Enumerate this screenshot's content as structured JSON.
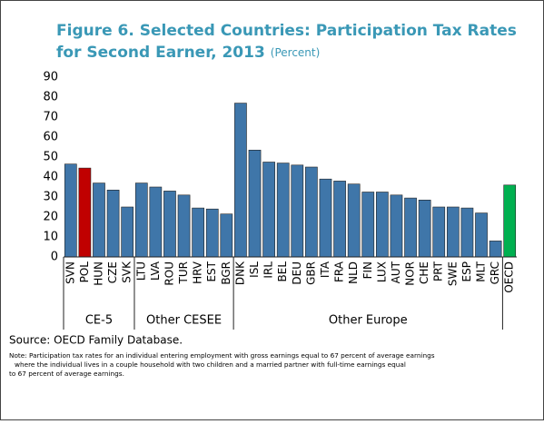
{
  "chart_data": {
    "type": "bar",
    "title_lines": [
      "Figure 6. Selected Countries: Participation Tax Rates",
      "for Second Earner, 2013"
    ],
    "subtitle": "(Percent)",
    "categories": [
      "SVN",
      "POL",
      "HUN",
      "CZE",
      "SVK",
      "LTU",
      "LVA",
      "ROU",
      "TUR",
      "HRV",
      "EST",
      "BGR",
      "DNK",
      "ISL",
      "IRL",
      "BEL",
      "DEU",
      "GBR",
      "ITA",
      "FRA",
      "NLD",
      "FIN",
      "LUX",
      "AUT",
      "NOR",
      "CHE",
      "PRT",
      "SWE",
      "ESP",
      "MLT",
      "GRC",
      "OECD"
    ],
    "category_groups": [
      "CE-5",
      "CE-5",
      "CE-5",
      "CE-5",
      "CE-5",
      "Other CESEE",
      "Other CESEE",
      "Other CESEE",
      "Other CESEE",
      "Other CESEE",
      "Other CESEE",
      "Other CESEE",
      "Other Europe",
      "Other Europe",
      "Other Europe",
      "Other Europe",
      "Other Europe",
      "Other Europe",
      "Other Europe",
      "Other Europe",
      "Other Europe",
      "Other Europe",
      "Other Europe",
      "Other Europe",
      "Other Europe",
      "Other Europe",
      "Other Europe",
      "Other Europe",
      "Other Europe",
      "Other Europe",
      "Other Europe",
      null
    ],
    "values": [
      46.5,
      44.5,
      37,
      33.5,
      25,
      37,
      35,
      33,
      31,
      24.5,
      24,
      21.5,
      77,
      53.5,
      47.5,
      47,
      46,
      45,
      39,
      38,
      36.5,
      32.5,
      32.5,
      31,
      29.5,
      28.5,
      25,
      25,
      24.5,
      22,
      8,
      36
    ],
    "colors": [
      "#3f76a9",
      "#c00000",
      "#3f76a9",
      "#3f76a9",
      "#3f76a9",
      "#3f76a9",
      "#3f76a9",
      "#3f76a9",
      "#3f76a9",
      "#3f76a9",
      "#3f76a9",
      "#3f76a9",
      "#3f76a9",
      "#3f76a9",
      "#3f76a9",
      "#3f76a9",
      "#3f76a9",
      "#3f76a9",
      "#3f76a9",
      "#3f76a9",
      "#3f76a9",
      "#3f76a9",
      "#3f76a9",
      "#3f76a9",
      "#3f76a9",
      "#3f76a9",
      "#3f76a9",
      "#3f76a9",
      "#3f76a9",
      "#3f76a9",
      "#3f76a9",
      "#00b050"
    ],
    "ylim": [
      0,
      90
    ],
    "yticks": [
      0,
      10,
      20,
      30,
      40,
      50,
      60,
      70,
      80,
      90
    ],
    "grid": false,
    "source": "Source: OECD Family Database.",
    "note_lines": [
      "Note: Participation tax rates for an individual entering employment with gross earnings equal to 67 percent of average earnings",
      "where the individual lives in a couple household with two children and a married partner with full-time earnings equal",
      "to 67 percent of average earnings."
    ]
  }
}
